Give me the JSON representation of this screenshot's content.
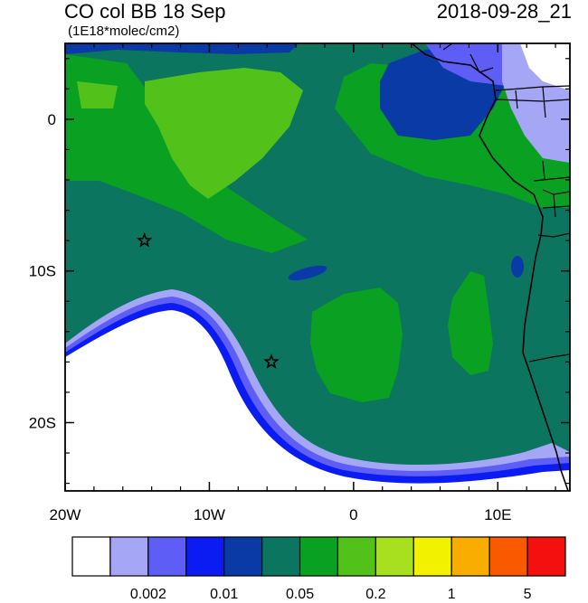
{
  "header": {
    "title": "CO col BB 18 Sep",
    "units": "(1E18*molec/cm2)",
    "datetime": "2018-09-28_21"
  },
  "map": {
    "lon_range": [
      -20,
      15
    ],
    "lat_range": [
      -24.5,
      5
    ],
    "x_ticks": [
      {
        "value": -20,
        "label": "20W"
      },
      {
        "value": -10,
        "label": "10W"
      },
      {
        "value": 0,
        "label": "0"
      },
      {
        "value": 10,
        "label": "10E"
      }
    ],
    "y_ticks": [
      {
        "value": 0,
        "label": "0"
      },
      {
        "value": -10,
        "label": "10S"
      },
      {
        "value": -20,
        "label": "20S"
      }
    ],
    "stars": [
      {
        "lon": -14.5,
        "lat": -8.0
      },
      {
        "lon": -5.7,
        "lat": -16.0
      }
    ]
  },
  "colorbar": {
    "colors": [
      "#ffffff",
      "#a6a6f6",
      "#5e5ef6",
      "#0a1cf2",
      "#0a3aa6",
      "#0b7560",
      "#0aa021",
      "#52c21a",
      "#a8e020",
      "#f2f200",
      "#f9ad00",
      "#f95a00",
      "#f51010"
    ],
    "labels": [
      {
        "after_box": 1,
        "text": "0.002"
      },
      {
        "after_box": 3,
        "text": "0.01"
      },
      {
        "after_box": 5,
        "text": "0.05"
      },
      {
        "after_box": 7,
        "text": "0.2"
      },
      {
        "after_box": 9,
        "text": "1"
      },
      {
        "after_box": 11,
        "text": "5"
      }
    ]
  }
}
